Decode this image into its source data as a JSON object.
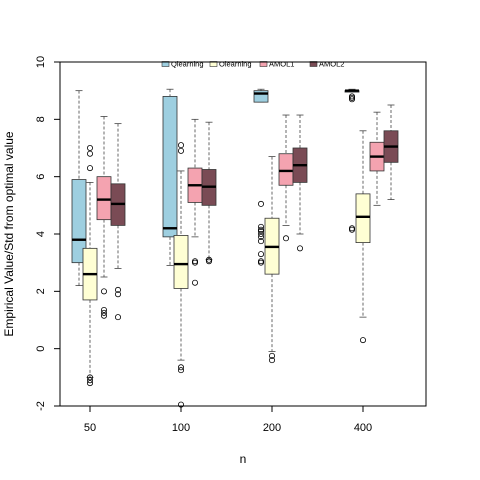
{
  "chart_data": {
    "type": "boxplot",
    "xlabel": "n",
    "ylabel": "Empirical Value/Std from optimal value",
    "ylim": [
      -2,
      10
    ],
    "yticks": [
      -2,
      0,
      2,
      4,
      6,
      8,
      10
    ],
    "categories": [
      "50",
      "100",
      "200",
      "400"
    ],
    "legend": {
      "position": "top-center",
      "entries": [
        {
          "label": "Qlearning",
          "color": "#9ecfe0"
        },
        {
          "label": "Olearning",
          "color": "#ffffd4"
        },
        {
          "label": "AMOL1",
          "color": "#f4a3b0"
        },
        {
          "label": "AMOL2",
          "color": "#7a4b55"
        }
      ]
    },
    "series": [
      {
        "name": "Qlearning",
        "color": "#9ecfe0",
        "boxes": [
          {
            "min": 2.2,
            "q1": 3.0,
            "median": 3.8,
            "q3": 5.9,
            "max": 9.0,
            "outliers": []
          },
          {
            "min": 2.9,
            "q1": 3.9,
            "median": 4.2,
            "q3": 8.8,
            "max": 9.05,
            "outliers": []
          },
          {
            "min": 8.6,
            "q1": 8.6,
            "median": 8.9,
            "q3": 9.0,
            "max": 9.05,
            "outliers": [
              5.05,
              4.25,
              4.15,
              4.1,
              4.0,
              3.9,
              3.75,
              3.3,
              3.05,
              3.0
            ]
          },
          {
            "min": 8.95,
            "q1": 8.95,
            "median": 9.0,
            "q3": 9.0,
            "max": 9.05,
            "outliers": [
              8.8,
              8.75,
              8.7,
              4.2,
              4.15
            ]
          }
        ]
      },
      {
        "name": "Olearning",
        "color": "#ffffd4",
        "boxes": [
          {
            "min": -1.0,
            "q1": 1.7,
            "median": 2.6,
            "q3": 3.5,
            "max": 5.8,
            "outliers": [
              7.0,
              6.8,
              6.3,
              -1.0,
              -1.1,
              -1.2
            ]
          },
          {
            "min": -0.4,
            "q1": 2.1,
            "median": 2.95,
            "q3": 3.95,
            "max": 6.2,
            "outliers": [
              7.1,
              6.9,
              -0.65,
              -0.75,
              -1.95
            ]
          },
          {
            "min": -0.1,
            "q1": 2.6,
            "median": 3.55,
            "q3": 4.55,
            "max": 6.7,
            "outliers": [
              -0.25,
              -0.4
            ]
          },
          {
            "min": 1.1,
            "q1": 3.7,
            "median": 4.6,
            "q3": 5.4,
            "max": 7.6,
            "outliers": [
              0.3
            ]
          }
        ]
      },
      {
        "name": "AMOL1",
        "color": "#f4a3b0",
        "boxes": [
          {
            "min": 2.5,
            "q1": 4.5,
            "median": 5.2,
            "q3": 6.0,
            "max": 8.1,
            "outliers": [
              2.0,
              1.35,
              1.25,
              1.15
            ]
          },
          {
            "min": 3.9,
            "q1": 5.1,
            "median": 5.7,
            "q3": 6.3,
            "max": 8.0,
            "outliers": [
              3.05,
              3.0,
              2.3
            ]
          },
          {
            "min": 4.3,
            "q1": 5.7,
            "median": 6.2,
            "q3": 6.8,
            "max": 8.15,
            "outliers": [
              3.85
            ]
          },
          {
            "min": 5.0,
            "q1": 6.2,
            "median": 6.7,
            "q3": 7.2,
            "max": 8.25,
            "outliers": []
          }
        ]
      },
      {
        "name": "AMOL2",
        "color": "#7a4b55",
        "boxes": [
          {
            "min": 2.8,
            "q1": 4.3,
            "median": 5.05,
            "q3": 5.75,
            "max": 7.85,
            "outliers": [
              2.05,
              1.9,
              1.1
            ]
          },
          {
            "min": 3.1,
            "q1": 5.0,
            "median": 5.65,
            "q3": 6.25,
            "max": 7.9,
            "outliers": [
              3.1,
              3.05
            ]
          },
          {
            "min": 4.0,
            "q1": 5.8,
            "median": 6.4,
            "q3": 7.0,
            "max": 8.15,
            "outliers": [
              3.5
            ]
          },
          {
            "min": 5.2,
            "q1": 6.5,
            "median": 7.05,
            "q3": 7.6,
            "max": 8.5,
            "outliers": []
          }
        ]
      }
    ]
  }
}
